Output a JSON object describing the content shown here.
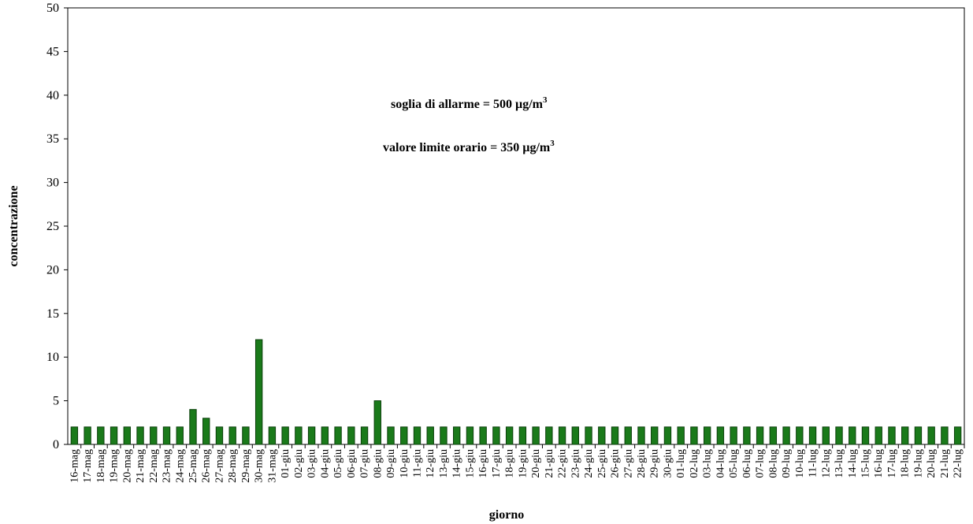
{
  "chart_data": {
    "type": "bar",
    "xlabel": "giorno",
    "ylabel": "concentrazione",
    "ylim": [
      0,
      50
    ],
    "yticks": [
      0,
      5,
      10,
      15,
      20,
      25,
      30,
      35,
      40,
      45,
      50
    ],
    "grid": false,
    "legend": "none",
    "bar_color": "#1a7a1a",
    "bar_edge_color": "#0b3f0b",
    "annotations": [
      {
        "text": "soglia di allarme = 500 µg/m",
        "sup": "3"
      },
      {
        "text": "valore limite orario = 350 µg/m",
        "sup": "3"
      }
    ],
    "categories": [
      "16-mag",
      "17-mag",
      "18-mag",
      "19-mag",
      "20-mag",
      "21-mag",
      "22-mag",
      "23-mag",
      "24-mag",
      "25-mag",
      "26-mag",
      "27-mag",
      "28-mag",
      "29-mag",
      "30-mag",
      "31-mag",
      "01-giu",
      "02-giu",
      "03-giu",
      "04-giu",
      "05-giu",
      "06-giu",
      "07-giu",
      "08-giu",
      "09-giu",
      "10-giu",
      "11-giu",
      "12-giu",
      "13-giu",
      "14-giu",
      "15-giu",
      "16-giu",
      "17-giu",
      "18-giu",
      "19-giu",
      "20-giu",
      "21-giu",
      "22-giu",
      "23-giu",
      "24-giu",
      "25-giu",
      "26-giu",
      "27-giu",
      "28-giu",
      "29-giu",
      "30-giu",
      "01-lug",
      "02-lug",
      "03-lug",
      "04-lug",
      "05-lug",
      "06-lug",
      "07-lug",
      "08-lug",
      "09-lug",
      "10-lug",
      "11-lug",
      "12-lug",
      "13-lug",
      "14-lug",
      "15-lug",
      "16-lug",
      "17-lug",
      "18-lug",
      "19-lug",
      "20-lug",
      "21-lug",
      "22-lug"
    ],
    "values": [
      2,
      2,
      2,
      2,
      2,
      2,
      2,
      2,
      2,
      4,
      3,
      2,
      2,
      2,
      12,
      2,
      2,
      2,
      2,
      2,
      2,
      2,
      2,
      5,
      2,
      2,
      2,
      2,
      2,
      2,
      2,
      2,
      2,
      2,
      2,
      2,
      2,
      2,
      2,
      2,
      2,
      2,
      2,
      2,
      2,
      2,
      2,
      2,
      2,
      2,
      2,
      2,
      2,
      2,
      2,
      2,
      2,
      2,
      2,
      2,
      2,
      2,
      2,
      2,
      2,
      2,
      2,
      2
    ]
  }
}
